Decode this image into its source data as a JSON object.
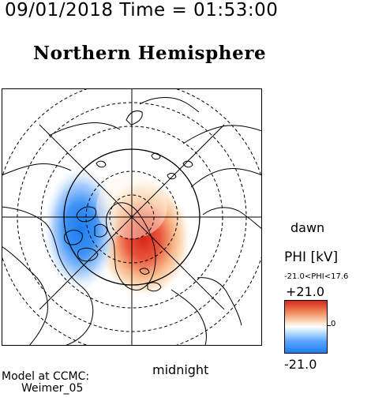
{
  "header": {
    "datetime": "09/01/2018 Time = 01:53:00",
    "title": "Northern Hemisphere"
  },
  "map": {
    "projection": "polar (north pole centred), noon at top, midnight at bottom",
    "orientation_labels": {
      "dawn": "dawn",
      "midnight": "midnight"
    },
    "grid": "dashed latitude circles, radial longitude lines",
    "colors": {
      "positive": "#d7261b",
      "negative": "#1e7ff0",
      "zero": "#ffffff",
      "coast": "#000000"
    }
  },
  "colorbar": {
    "title": "PHI [kV]",
    "range_text": "-21.0<PHI<17.6",
    "max_label": "+21.0",
    "zero_label": "0",
    "min_label": "-21.0",
    "vmin": -21.0,
    "vmax": 21.0
  },
  "footer": {
    "model_line1": "Model at CCMC:",
    "model_line2": "Weimer_05"
  }
}
